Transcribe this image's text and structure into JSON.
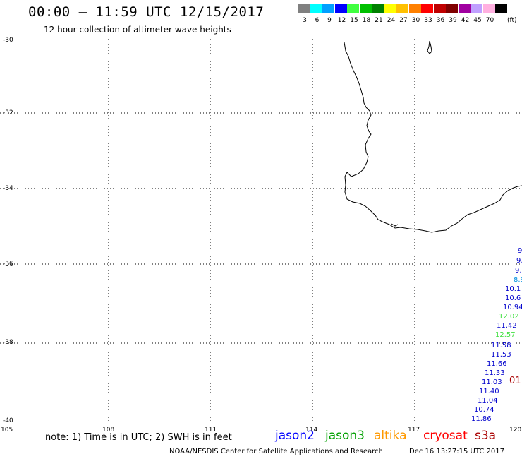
{
  "header": {
    "title": "00:00 – 11:59 UTC 12/15/2017",
    "subtitle": "12 hour collection of altimeter wave heights"
  },
  "legend": {
    "unit": "(ft)",
    "bins": [
      {
        "label": "3",
        "color": "#808080"
      },
      {
        "label": "6",
        "color": "#00ffff"
      },
      {
        "label": "9",
        "color": "#00a0ff"
      },
      {
        "label": "12",
        "color": "#0000ff"
      },
      {
        "label": "15",
        "color": "#40ff40"
      },
      {
        "label": "18",
        "color": "#00c000"
      },
      {
        "label": "21",
        "color": "#008000"
      },
      {
        "label": "24",
        "color": "#ffff00"
      },
      {
        "label": "27",
        "color": "#ffc000"
      },
      {
        "label": "30",
        "color": "#ff8000"
      },
      {
        "label": "33",
        "color": "#ff0000"
      },
      {
        "label": "36",
        "color": "#c00000"
      },
      {
        "label": "39",
        "color": "#800000"
      },
      {
        "label": "42",
        "color": "#a000a0"
      },
      {
        "label": "45",
        "color": "#c0a0ff"
      },
      {
        "label": "70",
        "color": "#ffb0e0"
      },
      {
        "label": "",
        "color": "#000000"
      }
    ]
  },
  "axes": {
    "lat_labels": [
      "-30",
      "-32",
      "-34",
      "-36",
      "-38",
      "-40"
    ],
    "lon_labels": [
      "105",
      "108",
      "111",
      "114",
      "117",
      "120"
    ]
  },
  "observations": [
    {
      "text": "9",
      "color": "#0000cc"
    },
    {
      "text": "9.",
      "color": "#0000cc"
    },
    {
      "text": "9.",
      "color": "#0000cc"
    },
    {
      "text": "8.9",
      "color": "#0090e0"
    },
    {
      "text": "10.1",
      "color": "#0000cc"
    },
    {
      "text": "10.6",
      "color": "#0000cc"
    },
    {
      "text": "10.94",
      "color": "#0000cc"
    },
    {
      "text": "12.02",
      "color": "#40e040"
    },
    {
      "text": "11.42",
      "color": "#0000cc"
    },
    {
      "text": "12.57",
      "color": "#40e040"
    },
    {
      "text": "11.58",
      "color": "#0000cc"
    },
    {
      "text": "11.53",
      "color": "#0000cc"
    },
    {
      "text": "11.66",
      "color": "#0000cc"
    },
    {
      "text": "11.33",
      "color": "#0000cc"
    },
    {
      "text": "11.03",
      "color": "#0000cc"
    },
    {
      "text": "11.40",
      "color": "#0000cc"
    },
    {
      "text": "11.04",
      "color": "#0000cc"
    },
    {
      "text": "10.74",
      "color": "#0000cc"
    },
    {
      "text": "11.86",
      "color": "#0000cc"
    }
  ],
  "cryosat_obs": {
    "text": "01",
    "color": "#aa0000"
  },
  "footer": {
    "note": "note: 1) Time is in UTC; 2) SWH is in feet",
    "satellites": [
      {
        "name": "jason2",
        "color": "#0000ff"
      },
      {
        "name": "jason3",
        "color": "#00a000"
      },
      {
        "name": "altika",
        "color": "#ff9900"
      },
      {
        "name": "cryosat",
        "color": "#ff0000"
      },
      {
        "name": "s3a",
        "color": "#aa0000"
      }
    ],
    "credit": "NOAA/NESDIS Center for Satellite Applications and Research",
    "timestamp": "Dec 16 13:27:15 UTC 2017"
  }
}
